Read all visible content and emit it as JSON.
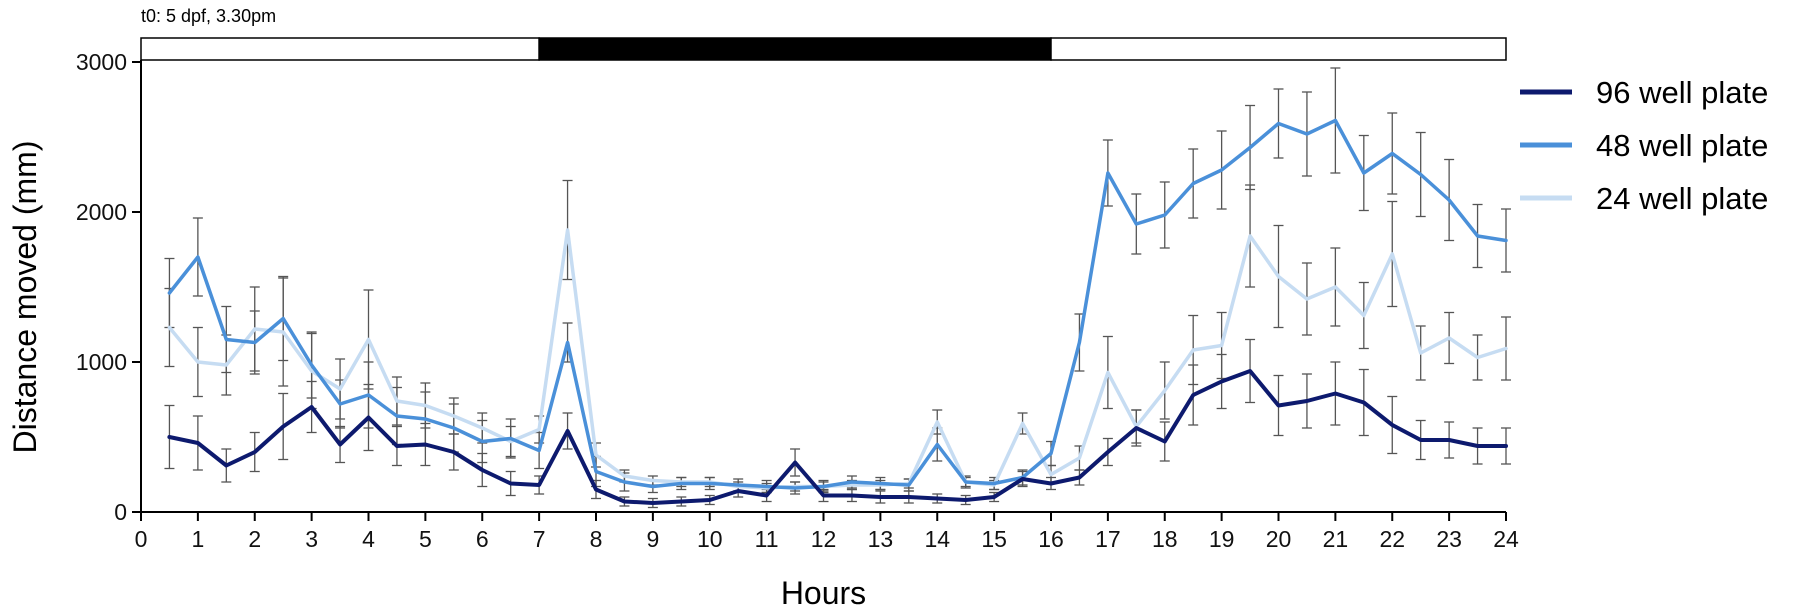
{
  "chart_data": {
    "type": "line",
    "xlabel": "Hours",
    "ylabel": "Distance moved (mm)",
    "xlim": [
      0,
      24
    ],
    "ylim": [
      0,
      3000
    ],
    "xticks": [
      0,
      1,
      2,
      3,
      4,
      5,
      6,
      7,
      8,
      9,
      10,
      11,
      12,
      13,
      14,
      15,
      16,
      17,
      18,
      19,
      20,
      21,
      22,
      23,
      24
    ],
    "yticks": [
      0,
      1000,
      2000,
      3000
    ],
    "grid": false,
    "legend_position": "right",
    "annotation": "t0: 5 dpf, 3.30pm",
    "light_dark_bar": [
      {
        "start": 0,
        "end": 7,
        "phase": "light"
      },
      {
        "start": 7,
        "end": 16,
        "phase": "dark"
      },
      {
        "start": 16,
        "end": 24,
        "phase": "light"
      }
    ],
    "x": [
      0.5,
      1,
      1.5,
      2,
      2.5,
      3,
      3.5,
      4,
      4.5,
      5,
      5.5,
      6,
      6.5,
      7,
      7.5,
      8,
      8.5,
      9,
      9.5,
      10,
      10.5,
      11,
      11.5,
      12,
      12.5,
      13,
      13.5,
      14,
      14.5,
      15,
      15.5,
      16,
      16.5,
      17,
      17.5,
      18,
      18.5,
      19,
      19.5,
      20,
      20.5,
      21,
      21.5,
      22,
      22.5,
      23,
      23.5,
      24
    ],
    "series": [
      {
        "name": "96 well plate",
        "color": "#0d1a6e",
        "values": [
          500,
          460,
          310,
          400,
          570,
          700,
          450,
          630,
          440,
          450,
          400,
          280,
          190,
          180,
          540,
          150,
          70,
          60,
          70,
          80,
          140,
          110,
          330,
          110,
          110,
          100,
          100,
          90,
          80,
          100,
          220,
          190,
          230,
          400,
          560,
          470,
          780,
          870,
          940,
          710,
          740,
          790,
          730,
          580,
          480,
          480,
          440,
          440
        ],
        "errors": [
          210,
          180,
          110,
          130,
          220,
          170,
          120,
          220,
          130,
          140,
          120,
          110,
          80,
          60,
          120,
          60,
          30,
          30,
          30,
          30,
          40,
          40,
          90,
          40,
          40,
          40,
          40,
          30,
          30,
          30,
          50,
          40,
          50,
          90,
          120,
          130,
          200,
          180,
          210,
          200,
          180,
          210,
          220,
          190,
          130,
          120,
          120,
          120
        ]
      },
      {
        "name": "48 well plate",
        "color": "#4a90d9",
        "values": [
          1460,
          1700,
          1150,
          1130,
          1290,
          980,
          720,
          780,
          640,
          620,
          560,
          470,
          490,
          410,
          1130,
          270,
          200,
          170,
          190,
          190,
          180,
          170,
          160,
          170,
          200,
          190,
          180,
          450,
          200,
          190,
          230,
          390,
          1130,
          2260,
          1920,
          1980,
          2190,
          2280,
          2430,
          2590,
          2520,
          2610,
          2260,
          2390,
          2250,
          2080,
          1840,
          1810
        ],
        "errors": [
          230,
          260,
          220,
          210,
          280,
          220,
          160,
          220,
          190,
          180,
          160,
          140,
          130,
          120,
          130,
          100,
          60,
          40,
          40,
          40,
          40,
          40,
          40,
          40,
          40,
          40,
          40,
          110,
          40,
          40,
          50,
          80,
          190,
          220,
          200,
          220,
          230,
          260,
          280,
          230,
          280,
          350,
          250,
          270,
          280,
          270,
          210,
          210
        ]
      },
      {
        "name": "24 well plate",
        "color": "#c6dcf2",
        "values": [
          1230,
          1000,
          980,
          1220,
          1200,
          940,
          820,
          1150,
          740,
          710,
          640,
          560,
          470,
          550,
          1880,
          380,
          240,
          210,
          200,
          200,
          170,
          160,
          170,
          170,
          180,
          180,
          190,
          600,
          200,
          180,
          590,
          250,
          360,
          930,
          570,
          810,
          1080,
          1110,
          1840,
          1570,
          1420,
          1500,
          1310,
          1720,
          1060,
          1160,
          1030,
          1090
        ],
        "errors": [
          260,
          230,
          200,
          280,
          360,
          250,
          200,
          330,
          160,
          150,
          120,
          100,
          100,
          90,
          330,
          80,
          40,
          30,
          30,
          30,
          30,
          30,
          30,
          30,
          30,
          30,
          30,
          80,
          30,
          30,
          70,
          60,
          80,
          240,
          110,
          190,
          230,
          220,
          340,
          340,
          240,
          260,
          220,
          350,
          180,
          170,
          150,
          210
        ]
      }
    ]
  }
}
